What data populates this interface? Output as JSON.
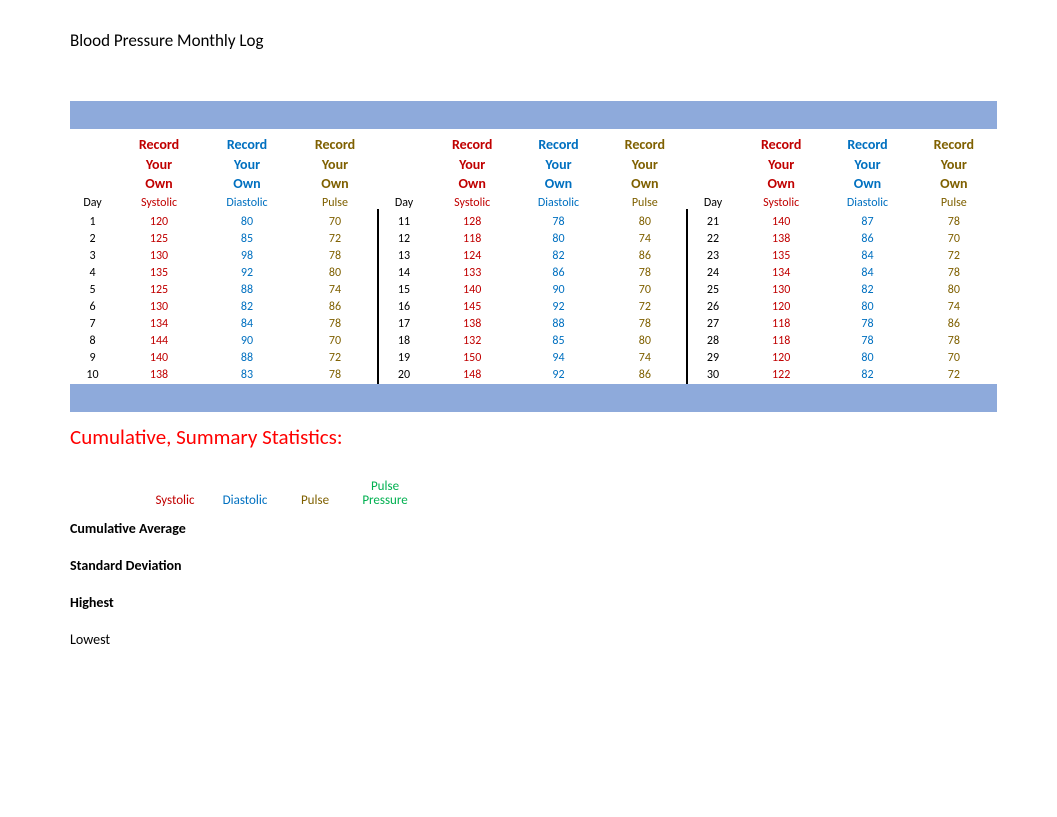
{
  "title": "Blood Pressure Monthly Log",
  "colors": {
    "blue_bar": "#8eaadb",
    "systolic": "#c00000",
    "diastolic": "#0070c0",
    "pulse": "#7f6000",
    "pulse_pressure": "#00b050",
    "stats_title": "#ff0000"
  },
  "headers": {
    "record_line1": "Record",
    "record_line2": "Your",
    "record_line3": "Own",
    "day": "Day",
    "systolic": "Systolic",
    "diastolic": "Diastolic",
    "pulse": "Pulse"
  },
  "blocks": [
    {
      "rows": [
        {
          "day": "1",
          "sys": "120",
          "dia": "80",
          "pul": "70"
        },
        {
          "day": "2",
          "sys": "125",
          "dia": "85",
          "pul": "72"
        },
        {
          "day": "3",
          "sys": "130",
          "dia": "98",
          "pul": "78"
        },
        {
          "day": "4",
          "sys": "135",
          "dia": "92",
          "pul": "80"
        },
        {
          "day": "5",
          "sys": "125",
          "dia": "88",
          "pul": "74"
        },
        {
          "day": "6",
          "sys": "130",
          "dia": "82",
          "pul": "86"
        },
        {
          "day": "7",
          "sys": "134",
          "dia": "84",
          "pul": "78"
        },
        {
          "day": "8",
          "sys": "144",
          "dia": "90",
          "pul": "70"
        },
        {
          "day": "9",
          "sys": "140",
          "dia": "88",
          "pul": "72"
        },
        {
          "day": "10",
          "sys": "138",
          "dia": "83",
          "pul": "78"
        }
      ]
    },
    {
      "rows": [
        {
          "day": "11",
          "sys": "128",
          "dia": "78",
          "pul": "80"
        },
        {
          "day": "12",
          "sys": "118",
          "dia": "80",
          "pul": "74"
        },
        {
          "day": "13",
          "sys": "124",
          "dia": "82",
          "pul": "86"
        },
        {
          "day": "14",
          "sys": "133",
          "dia": "86",
          "pul": "78"
        },
        {
          "day": "15",
          "sys": "140",
          "dia": "90",
          "pul": "70"
        },
        {
          "day": "16",
          "sys": "145",
          "dia": "92",
          "pul": "72"
        },
        {
          "day": "17",
          "sys": "138",
          "dia": "88",
          "pul": "78"
        },
        {
          "day": "18",
          "sys": "132",
          "dia": "85",
          "pul": "80"
        },
        {
          "day": "19",
          "sys": "150",
          "dia": "94",
          "pul": "74"
        },
        {
          "day": "20",
          "sys": "148",
          "dia": "92",
          "pul": "86"
        }
      ]
    },
    {
      "rows": [
        {
          "day": "21",
          "sys": "140",
          "dia": "87",
          "pul": "78"
        },
        {
          "day": "22",
          "sys": "138",
          "dia": "86",
          "pul": "70"
        },
        {
          "day": "23",
          "sys": "135",
          "dia": "84",
          "pul": "72"
        },
        {
          "day": "24",
          "sys": "134",
          "dia": "84",
          "pul": "78"
        },
        {
          "day": "25",
          "sys": "130",
          "dia": "82",
          "pul": "80"
        },
        {
          "day": "26",
          "sys": "120",
          "dia": "80",
          "pul": "74"
        },
        {
          "day": "27",
          "sys": "118",
          "dia": "78",
          "pul": "86"
        },
        {
          "day": "28",
          "sys": "118",
          "dia": "78",
          "pul": "78"
        },
        {
          "day": "29",
          "sys": "120",
          "dia": "80",
          "pul": "70"
        },
        {
          "day": "30",
          "sys": "122",
          "dia": "82",
          "pul": "72"
        }
      ]
    }
  ],
  "stats": {
    "title": "Cumulative, Summary Statistics:",
    "cols": {
      "systolic": "Systolic",
      "diastolic": "Diastolic",
      "pulse": "Pulse",
      "pp1": "Pulse",
      "pp2": "Pressure"
    },
    "rows": {
      "avg": "Cumulative Average",
      "std": "Standard Deviation",
      "high": "Highest",
      "low": "Lowest"
    }
  }
}
